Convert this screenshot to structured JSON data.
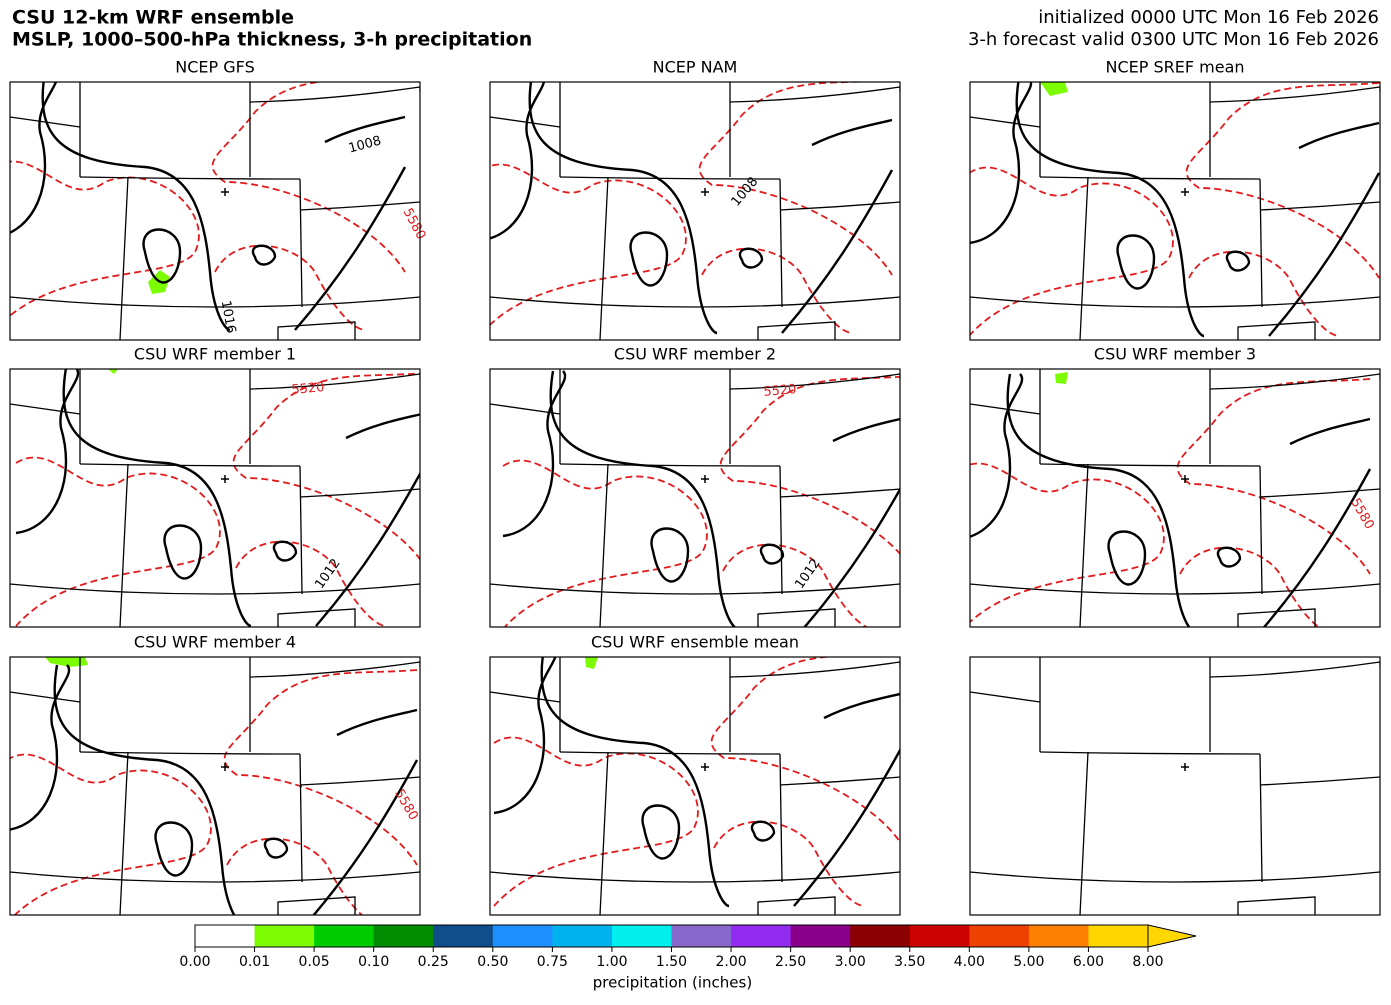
{
  "header": {
    "title": "CSU 12-km WRF ensemble",
    "subtitle": "MSLP, 1000–500-hPa thickness, 3-h precipitation",
    "initialized": "initialized 0000 UTC Mon 16 Feb 2026",
    "valid": "3-h forecast valid 0300 UTC Mon 16 Feb 2026"
  },
  "panels": [
    {
      "title": "NCEP GFS",
      "isobars": [
        1008,
        1016
      ],
      "thickness": [
        5580
      ]
    },
    {
      "title": "NCEP NAM",
      "isobars": [
        1008
      ],
      "thickness": []
    },
    {
      "title": "NCEP SREF mean",
      "isobars": [],
      "thickness": []
    },
    {
      "title": "CSU WRF member 1",
      "isobars": [
        1012
      ],
      "thickness": [
        5520
      ]
    },
    {
      "title": "CSU WRF member 2",
      "isobars": [
        1012
      ],
      "thickness": [
        5520
      ]
    },
    {
      "title": "CSU WRF member 3",
      "isobars": [],
      "thickness": [
        5580
      ]
    },
    {
      "title": "CSU WRF member 4",
      "isobars": [],
      "thickness": [
        5580
      ]
    },
    {
      "title": "CSU WRF ensemble mean",
      "isobars": [],
      "thickness": []
    },
    {
      "isobars": [],
      "thickness": []
    }
  ],
  "colorbar": {
    "label": "precipitation (inches)",
    "extend": "max",
    "ticks": [
      {
        "value": 0,
        "label": "0.00"
      },
      {
        "value": 0.01,
        "label": "0.01"
      },
      {
        "value": 0.05,
        "label": "0.05"
      },
      {
        "value": 0.1,
        "label": "0.10"
      },
      {
        "value": 0.25,
        "label": "0.25"
      },
      {
        "value": 0.5,
        "label": "0.50"
      },
      {
        "value": 0.75,
        "label": "0.75"
      },
      {
        "value": 1,
        "label": "1.00"
      },
      {
        "value": 1.5,
        "label": "1.50"
      },
      {
        "value": 2,
        "label": "2.00"
      },
      {
        "value": 2.5,
        "label": "2.50"
      },
      {
        "value": 3,
        "label": "3.00"
      },
      {
        "value": 3.5,
        "label": "3.50"
      },
      {
        "value": 4,
        "label": "4.00"
      },
      {
        "value": 5,
        "label": "5.00"
      },
      {
        "value": 6,
        "label": "6.00"
      },
      {
        "value": 8,
        "label": "8.00"
      }
    ],
    "colors": [
      "#ffffff",
      "#7cfc00",
      "#00cd00",
      "#008b00",
      "#104e8b",
      "#1e90ff",
      "#00b2ee",
      "#00eeee",
      "#8968cd",
      "#912cee",
      "#8b008b",
      "#8b0000",
      "#cd0000",
      "#ee4000",
      "#ff7f00",
      "#ffd700"
    ]
  }
}
